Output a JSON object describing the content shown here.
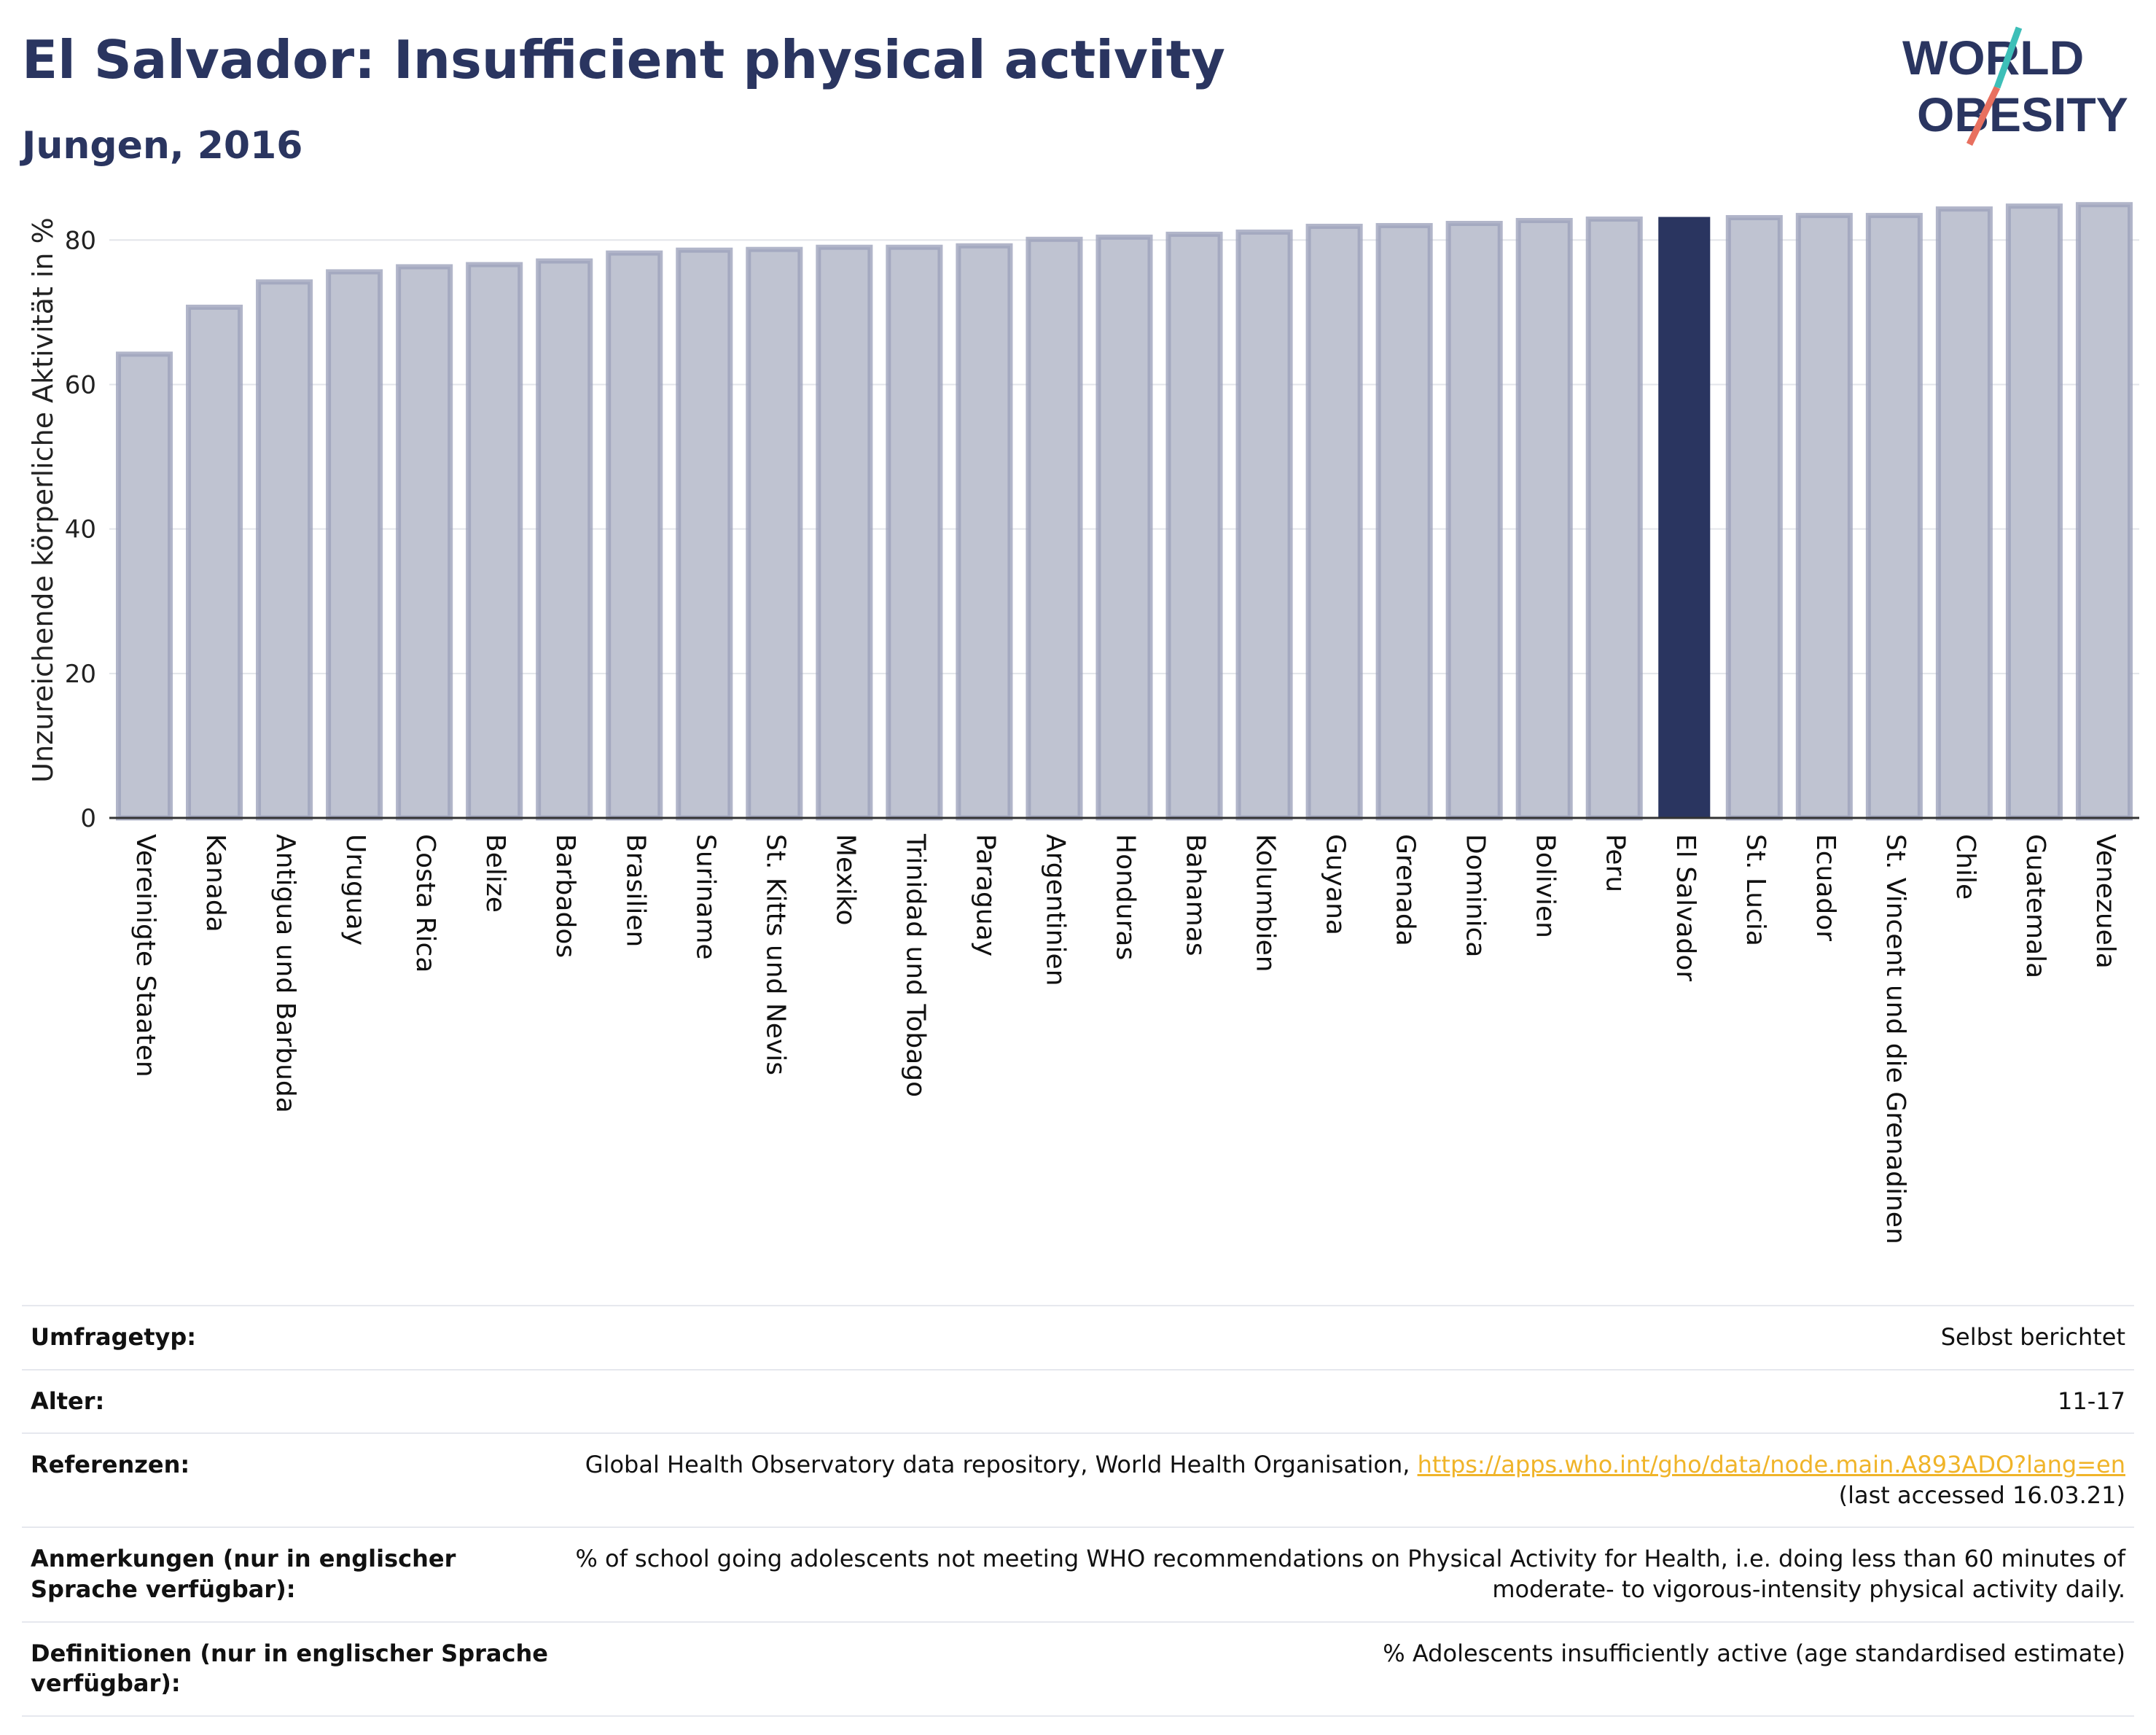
{
  "header": {
    "title": "El Salvador: Insufficient physical activity",
    "subtitle": "Jungen, 2016"
  },
  "logo": {
    "line1": "WORLD",
    "line2": "OBESITY"
  },
  "chart_data": {
    "type": "bar",
    "ylabel": "Unzureichende körperliche Aktivität in %",
    "ylim": [
      0,
      88
    ],
    "yticks": [
      0,
      20,
      40,
      60,
      80
    ],
    "grid": true,
    "highlight": "El Salvador",
    "colors": {
      "bar": "#bfc3d1",
      "bar_edge": "#9ea3bb",
      "highlight": "#2a3560",
      "grid": "#e3e5ea"
    },
    "categories": [
      "Vereinigte Staaten",
      "Kanada",
      "Antigua und Barbuda",
      "Uruguay",
      "Costa Rica",
      "Belize",
      "Barbados",
      "Brasilien",
      "Suriname",
      "St. Kitts und Nevis",
      "Mexiko",
      "Trinidad und Tobago",
      "Paraguay",
      "Argentinien",
      "Honduras",
      "Bahamas",
      "Kolumbien",
      "Guyana",
      "Grenada",
      "Dominica",
      "Bolivien",
      "Peru",
      "El Salvador",
      "St. Lucia",
      "Ecuador",
      "St. Vincent und die Grenadinen",
      "Chile",
      "Guatemala",
      "Venezuela"
    ],
    "values": [
      64.2,
      70.7,
      74.2,
      75.6,
      76.3,
      76.6,
      77.1,
      78.2,
      78.6,
      78.7,
      79.0,
      79.0,
      79.2,
      80.1,
      80.4,
      80.8,
      81.1,
      81.9,
      82.0,
      82.3,
      82.7,
      82.9,
      83.2,
      83.1,
      83.4,
      83.4,
      84.3,
      84.7,
      84.9
    ]
  },
  "meta": [
    {
      "label": "Umfragetyp:",
      "value": "Selbst berichtet"
    },
    {
      "label": "Alter:",
      "value": "11-17"
    },
    {
      "label": "Referenzen:",
      "value": "Global Health Observatory data repository, World Health Organisation,",
      "link": "https://apps.who.int/gho/data/node.main.A893ADO?lang=en",
      "suffix": "(last accessed 16.03.21)"
    },
    {
      "label": "Anmerkungen (nur in englischer Sprache verfügbar):",
      "value": "% of school going adolescents not meeting WHO recommendations on Physical Activity for Health, i.e. doing less than 60 minutes of moderate- to vigorous-intensity physical activity daily."
    },
    {
      "label": "Definitionen (nur in englischer Sprache verfügbar):",
      "value": "% Adolescents insufficiently active (age standardised estimate)"
    }
  ]
}
